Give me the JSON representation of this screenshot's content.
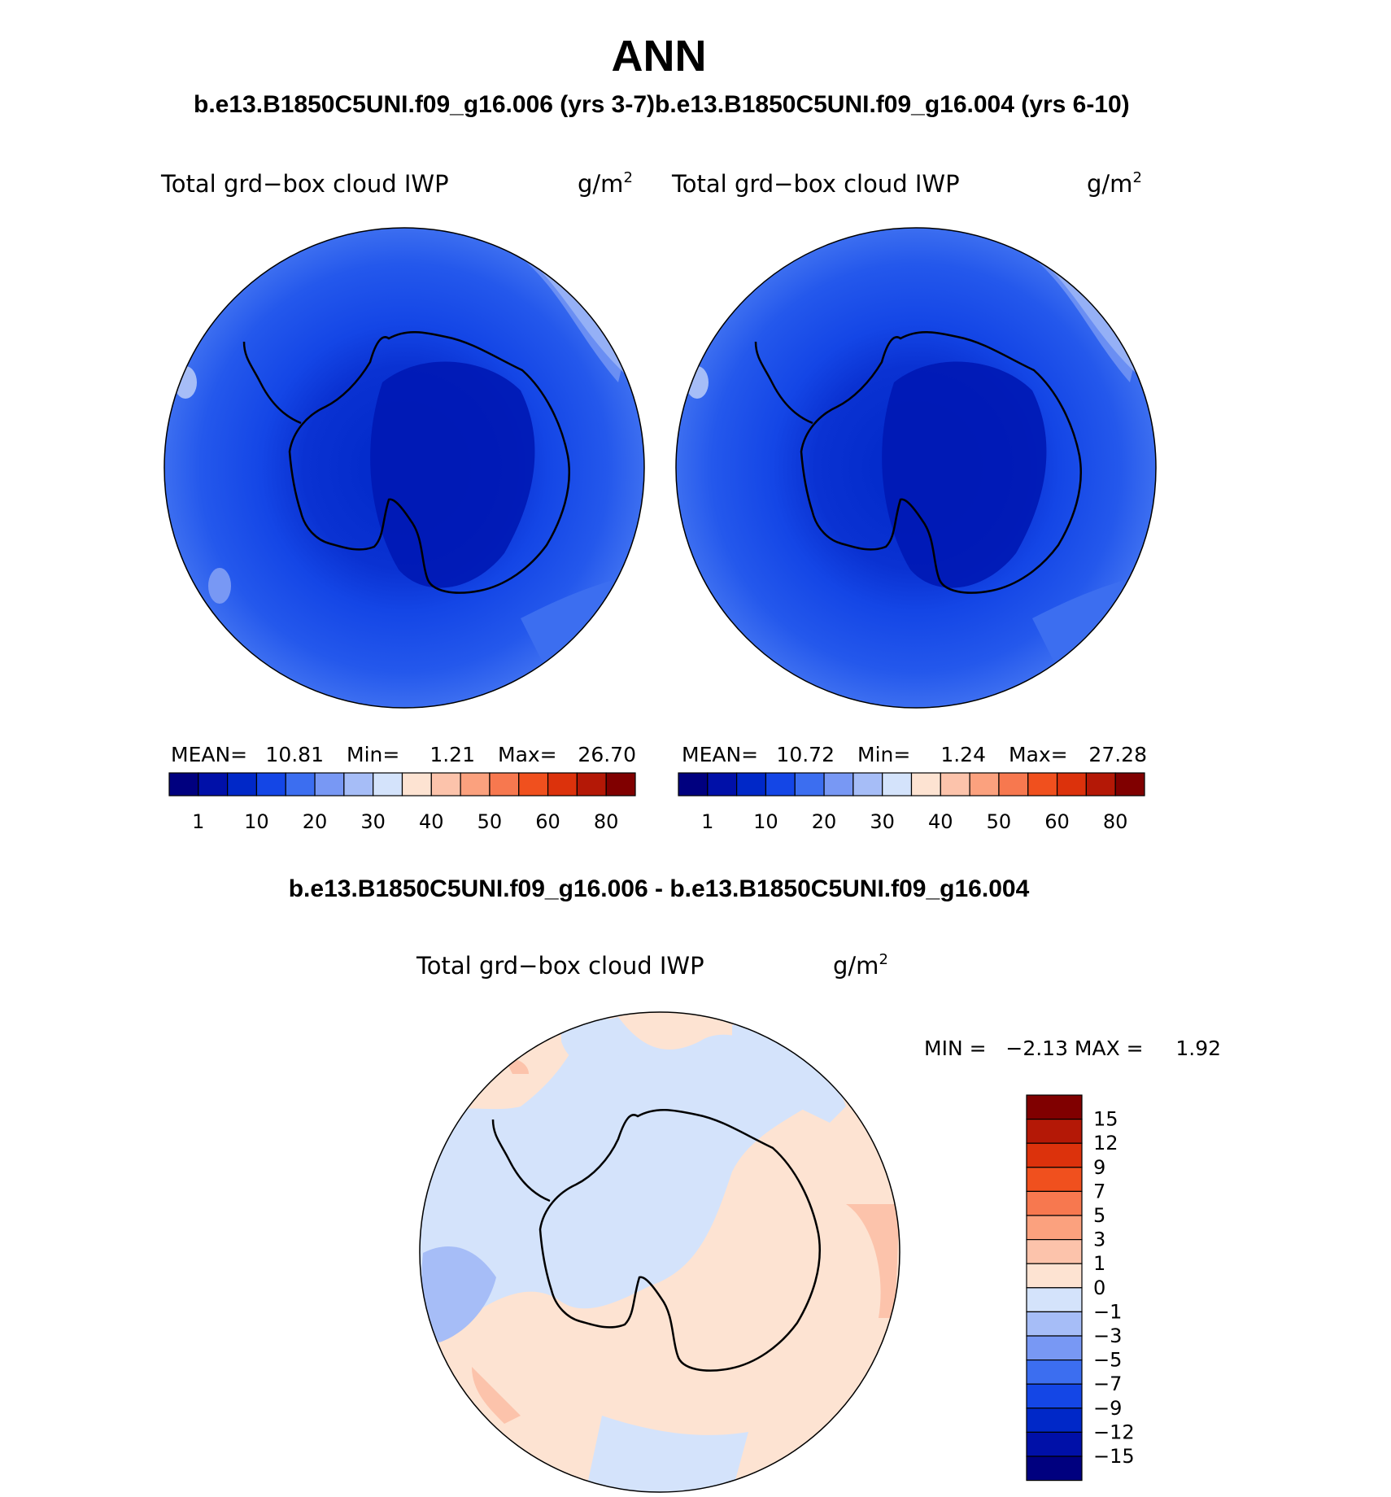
{
  "page": {
    "title": "ANN",
    "subtitle_left": "b.e13.B1850C5UNI.f09_g16.006 (yrs 3-7)",
    "subtitle_right": "b.e13.B1850C5UNI.f09_g16.004 (yrs 6-10)",
    "diff_title": "b.e13.B1850C5UNI.f09_g16.006 - b.e13.B1850C5UNI.f09_g16.004"
  },
  "panels": [
    {
      "variable": "Total grd−box cloud IWP",
      "units": "g/m",
      "units_sup": "2",
      "stats": {
        "mean_label": "MEAN=",
        "mean": "10.81",
        "min_label": "Min=",
        "min": "1.21",
        "max_label": "Max=",
        "max": "26.70"
      }
    },
    {
      "variable": "Total grd−box cloud IWP",
      "units": "g/m",
      "units_sup": "2",
      "stats": {
        "mean_label": "MEAN=",
        "mean": "10.72",
        "min_label": "Min=",
        "min": "1.24",
        "max_label": "Max=",
        "max": "27.28"
      }
    }
  ],
  "diff_panel": {
    "variable": "Total grd−box cloud IWP",
    "units": "g/m",
    "units_sup": "2",
    "stats_text": "MIN =   −2.13 MAX =     1.92"
  },
  "abs_colorbar": {
    "colors": [
      "#00007f",
      "#0010a8",
      "#0028c8",
      "#1446e6",
      "#3c6ef0",
      "#7898f4",
      "#a6bdf7",
      "#d4e3fb",
      "#fde3d2",
      "#fcc3ab",
      "#fba17e",
      "#f7784f",
      "#f0501e",
      "#dc320c",
      "#b41806",
      "#800000"
    ],
    "labels": [
      "1",
      "10",
      "20",
      "30",
      "40",
      "50",
      "60",
      "80"
    ]
  },
  "diff_colorbar": {
    "colors_top_to_bottom": [
      "#800000",
      "#b41806",
      "#dc320c",
      "#f0501e",
      "#f7784f",
      "#fba17e",
      "#fcc3ab",
      "#fde3d2",
      "#d4e3fb",
      "#a6bdf7",
      "#7898f4",
      "#3c6ef0",
      "#1446e6",
      "#0028c8",
      "#0010a8",
      "#00007f"
    ],
    "labels_top_to_bottom": [
      "15",
      "12",
      "9",
      "7",
      "5",
      "3",
      "1",
      "0",
      "−1",
      "−3",
      "−5",
      "−7",
      "−9",
      "−12",
      "−15"
    ]
  }
}
